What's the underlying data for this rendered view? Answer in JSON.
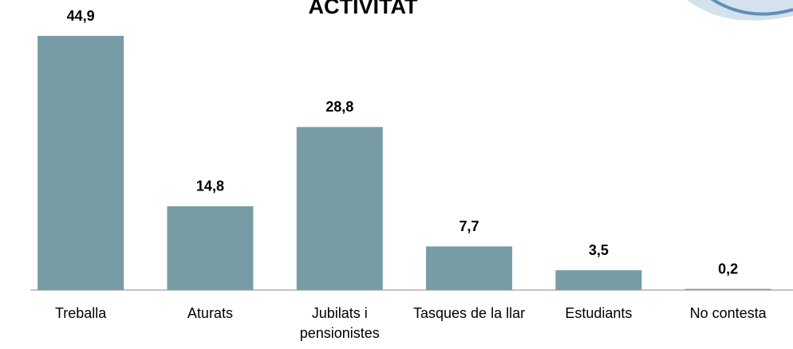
{
  "chart_data": {
    "type": "bar",
    "title": "ACTIVITAT",
    "categories": [
      "Treballa",
      "Aturats",
      "Jubilats i pensionistes",
      "Tasques de la llar",
      "Estudiants",
      "No contesta"
    ],
    "values": [
      44.9,
      14.8,
      28.8,
      7.7,
      3.5,
      0.2
    ],
    "value_labels": [
      "44,9",
      "14,8",
      "28,8",
      "7,7",
      "3,5",
      "0,2"
    ],
    "color": "#789ca6"
  }
}
